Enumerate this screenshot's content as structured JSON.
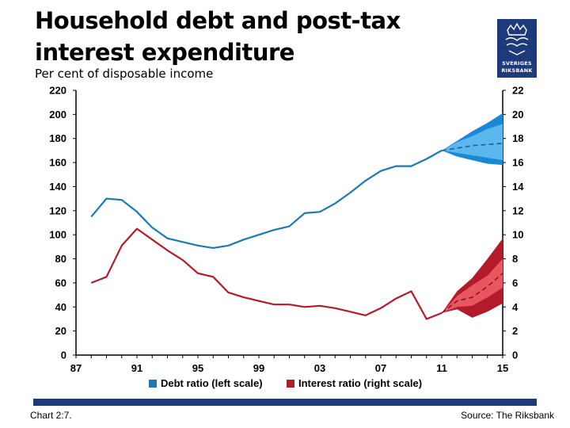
{
  "title": "Household debt and post-tax interest expenditure",
  "subtitle": "Per cent of disposable income",
  "logo": {
    "line1": "SVERIGES",
    "line2": "RIKSBANK"
  },
  "footer": {
    "left": "Chart 2:7.",
    "right": "Source: The Riksbank"
  },
  "chart_data": {
    "type": "line",
    "x_ticks": [
      "87",
      "91",
      "95",
      "99",
      "03",
      "07",
      "11",
      "15"
    ],
    "x_tick_years": [
      1987,
      1991,
      1995,
      1999,
      2003,
      2007,
      2011,
      2015
    ],
    "xlim": [
      1987,
      2015
    ],
    "y_left_ticks": [
      0,
      20,
      40,
      60,
      80,
      100,
      120,
      140,
      160,
      180,
      200,
      220
    ],
    "y_right_ticks": [
      0,
      2,
      4,
      6,
      8,
      10,
      12,
      14,
      16,
      18,
      20,
      22
    ],
    "ylim_left": [
      0,
      220
    ],
    "ylim_right": [
      0,
      22
    ],
    "series": [
      {
        "name": "Debt ratio (left scale)",
        "axis": "left",
        "color": "#1a7ab5",
        "x": [
          1988,
          1989,
          1990,
          1991,
          1992,
          1993,
          1994,
          1995,
          1996,
          1997,
          1998,
          1999,
          2000,
          2001,
          2002,
          2003,
          2004,
          2005,
          2006,
          2007,
          2008,
          2009,
          2010,
          2011
        ],
        "y": [
          115,
          130,
          129,
          119,
          106,
          97,
          94,
          91,
          89,
          91,
          96,
          100,
          104,
          107,
          118,
          119,
          126,
          135,
          145,
          153,
          157,
          157,
          163,
          170
        ],
        "forecast": {
          "x": [
            2011,
            2012,
            2013,
            2014,
            2015
          ],
          "central": [
            170,
            172,
            174,
            175,
            176
          ],
          "inner_upper": [
            170,
            177,
            182,
            188,
            192
          ],
          "inner_lower": [
            170,
            168,
            166,
            164,
            162
          ],
          "outer_upper": [
            170,
            178,
            186,
            193,
            201
          ],
          "outer_lower": [
            170,
            165,
            162,
            159,
            158
          ],
          "inner_color": "#5ab8ec",
          "outer_color": "#1a88d6"
        }
      },
      {
        "name": "Interest ratio (right scale)",
        "axis": "right",
        "color": "#b31b2a",
        "x": [
          1988,
          1989,
          1990,
          1991,
          1992,
          1993,
          1994,
          1995,
          1996,
          1997,
          1998,
          1999,
          2000,
          2001,
          2002,
          2003,
          2004,
          2005,
          2006,
          2007,
          2008,
          2009,
          2010,
          2011
        ],
        "y": [
          6.0,
          6.5,
          9.1,
          10.5,
          9.6,
          8.7,
          7.9,
          6.8,
          6.5,
          5.2,
          4.8,
          4.5,
          4.2,
          4.2,
          4.0,
          4.1,
          3.9,
          3.6,
          3.3,
          3.9,
          4.7,
          5.3,
          3.0,
          3.5
        ],
        "forecast": {
          "x": [
            2011,
            2012,
            2013,
            2014,
            2015
          ],
          "central": [
            3.5,
            4.5,
            4.8,
            5.7,
            6.8
          ],
          "inner_upper": [
            3.5,
            4.9,
            5.8,
            6.6,
            8.0
          ],
          "inner_lower": [
            3.5,
            4.0,
            4.1,
            4.8,
            5.6
          ],
          "outer_upper": [
            3.5,
            5.3,
            6.4,
            8.0,
            9.7
          ],
          "outer_lower": [
            3.5,
            3.8,
            3.1,
            3.6,
            4.3
          ],
          "inner_color": "#e8565f",
          "outer_color": "#b31b2a"
        }
      }
    ]
  }
}
